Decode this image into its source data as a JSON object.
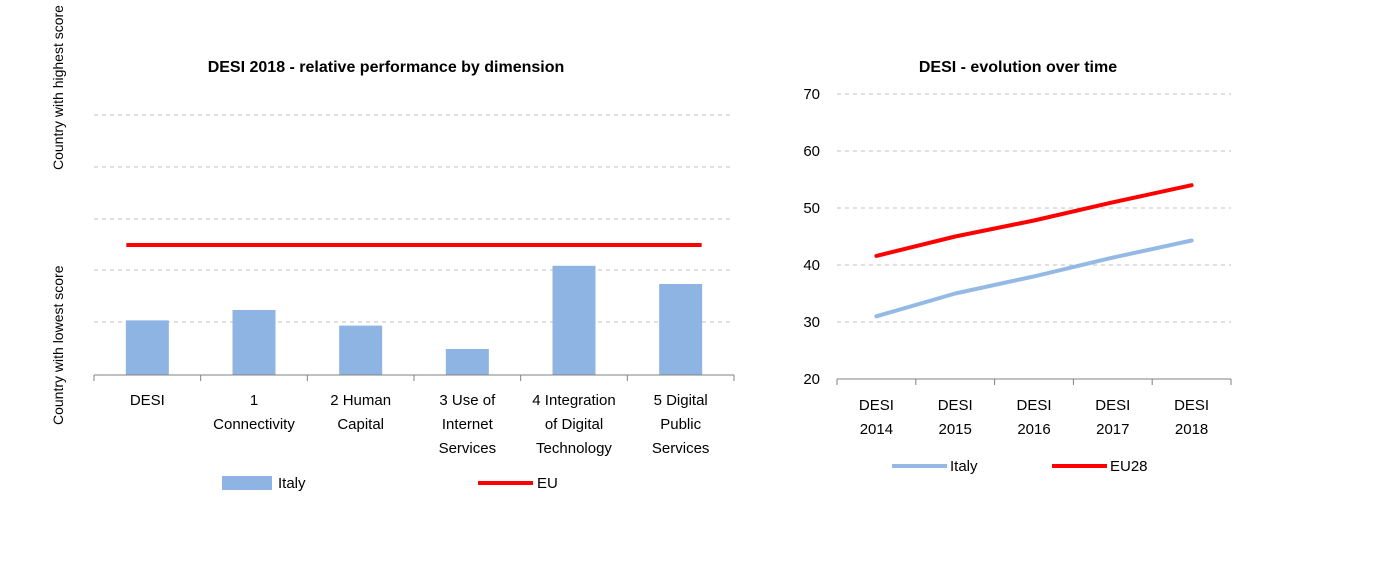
{
  "chart_data": [
    {
      "type": "bar",
      "title": "DESI 2018 -  relative performance by dimension",
      "ylabel_top": "Country with highest score",
      "ylabel_bottom": "Country with lowest score",
      "ylim": [
        0,
        1
      ],
      "grid": true,
      "legend": "bottom",
      "categories": [
        [
          "DESI"
        ],
        [
          "1",
          "Connectivity"
        ],
        [
          "2 Human",
          "Capital"
        ],
        [
          "3 Use of",
          "Internet",
          "Services"
        ],
        [
          "4 Integration",
          "of Digital",
          "Technology"
        ],
        [
          "5 Digital",
          "Public",
          "Services"
        ]
      ],
      "series": [
        {
          "name": "Italy",
          "kind": "bar",
          "color": "#8EB4E3",
          "values": [
            0.21,
            0.25,
            0.19,
            0.1,
            0.42,
            0.35
          ]
        },
        {
          "name": "EU",
          "kind": "line",
          "color": "#FF0000",
          "values": [
            0.5,
            0.5,
            0.5,
            0.5,
            0.5,
            0.5
          ]
        }
      ]
    },
    {
      "type": "line",
      "title": "DESI - evolution over time",
      "ylim": [
        20,
        70
      ],
      "yticks": [
        20,
        30,
        40,
        50,
        60,
        70
      ],
      "grid": true,
      "legend": "bottom",
      "categories": [
        [
          "DESI",
          "2014"
        ],
        [
          "DESI",
          "2015"
        ],
        [
          "DESI",
          "2016"
        ],
        [
          "DESI",
          "2017"
        ],
        [
          "DESI",
          "2018"
        ]
      ],
      "series": [
        {
          "name": "Italy",
          "color": "#95B9E5",
          "values": [
            31.0,
            35.0,
            38.0,
            41.3,
            44.3
          ]
        },
        {
          "name": "EU28",
          "color": "#FF0000",
          "values": [
            41.6,
            45.0,
            47.8,
            51.0,
            54.0
          ]
        }
      ]
    }
  ]
}
